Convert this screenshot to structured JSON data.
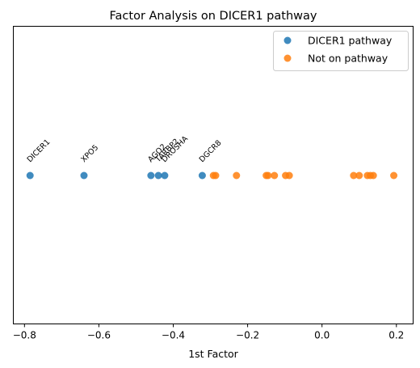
{
  "chart_data": {
    "type": "scatter",
    "title": "Factor Analysis on DICER1 pathway",
    "xlabel": "1st Factor",
    "ylabel": "",
    "xlim": [
      -0.83,
      0.245
    ],
    "xticks": [
      -0.8,
      -0.6,
      -0.4,
      -0.2,
      0.0,
      0.2
    ],
    "xtick_labels": [
      "−0.8",
      "−0.6",
      "−0.4",
      "−0.2",
      "0.0",
      "0.2"
    ],
    "grid": false,
    "legend_position": "top-right",
    "series": [
      {
        "name": "DICER1 pathway",
        "color": "#1f77b4",
        "points": [
          {
            "x": -0.785,
            "label": "DICER1"
          },
          {
            "x": -0.64,
            "label": "XPO5"
          },
          {
            "x": -0.46,
            "label": "AGO2"
          },
          {
            "x": -0.44,
            "label": "TARBP2"
          },
          {
            "x": -0.423,
            "label": "DROSHA"
          },
          {
            "x": -0.322,
            "label": "DGCR8"
          }
        ]
      },
      {
        "name": "Not on pathway",
        "color": "#ff7f0e",
        "points": [
          {
            "x": -0.292
          },
          {
            "x": -0.286
          },
          {
            "x": -0.23
          },
          {
            "x": -0.15
          },
          {
            "x": -0.145
          },
          {
            "x": -0.128
          },
          {
            "x": -0.098
          },
          {
            "x": -0.088
          },
          {
            "x": 0.085
          },
          {
            "x": 0.1
          },
          {
            "x": 0.122
          },
          {
            "x": 0.13
          },
          {
            "x": 0.138
          },
          {
            "x": 0.193
          }
        ]
      }
    ]
  }
}
